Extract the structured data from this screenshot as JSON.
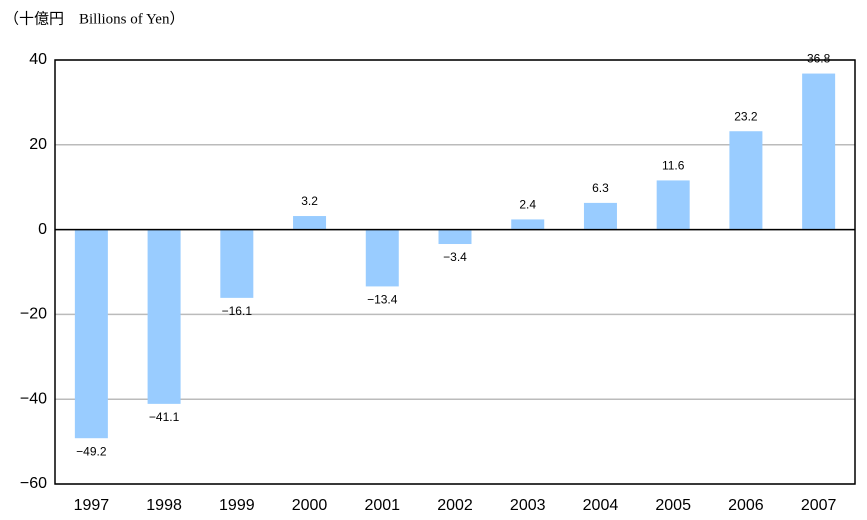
{
  "chart_data": {
    "type": "bar",
    "title": "（十億円　Billions of Yen）",
    "categories": [
      "1997",
      "1998",
      "1999",
      "2000",
      "2001",
      "2002",
      "2003",
      "2004",
      "2005",
      "2006",
      "2007"
    ],
    "values": [
      -49.2,
      -41.1,
      -16.1,
      3.2,
      -13.4,
      -3.4,
      2.4,
      6.3,
      11.6,
      23.2,
      36.8
    ],
    "value_labels": [
      "−49.2",
      "−41.1",
      "−16.1",
      "3.2",
      "−13.4",
      "−3.4",
      "2.4",
      "6.3",
      "11.6",
      "23.2",
      "36.8"
    ],
    "color": "#99ccff",
    "ylim": [
      -60,
      40
    ],
    "yticks": [
      {
        "value": -60,
        "label": "−60"
      },
      {
        "value": -40,
        "label": "−40"
      },
      {
        "value": -20,
        "label": "−20"
      },
      0,
      20,
      40
    ],
    "grid": true
  }
}
